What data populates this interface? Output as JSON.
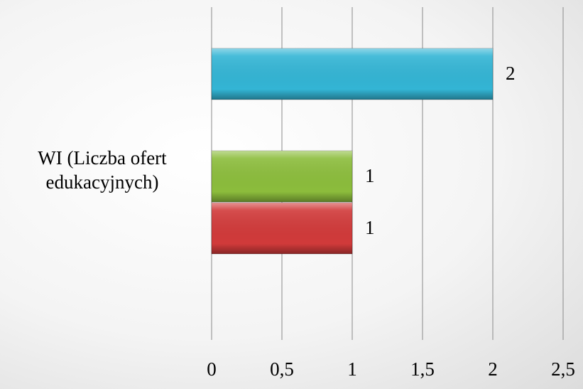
{
  "chart_data": {
    "type": "hbar",
    "categories": [
      "WI (Liczba ofert edukacyjnych)"
    ],
    "series": [
      {
        "color": "#d13a3a",
        "values": [
          1
        ]
      },
      {
        "color": "#8cbd3c",
        "values": [
          1
        ]
      },
      {
        "color": "#33b5d5",
        "values": [
          2
        ]
      }
    ],
    "xlim": [
      0,
      2.5
    ],
    "xticks": [
      0,
      {
        "value": 0.5,
        "label": "0,5"
      },
      1,
      {
        "value": 1.5,
        "label": "1,5"
      },
      2,
      {
        "value": 2.5,
        "label": "2,5"
      }
    ],
    "grid": true
  }
}
